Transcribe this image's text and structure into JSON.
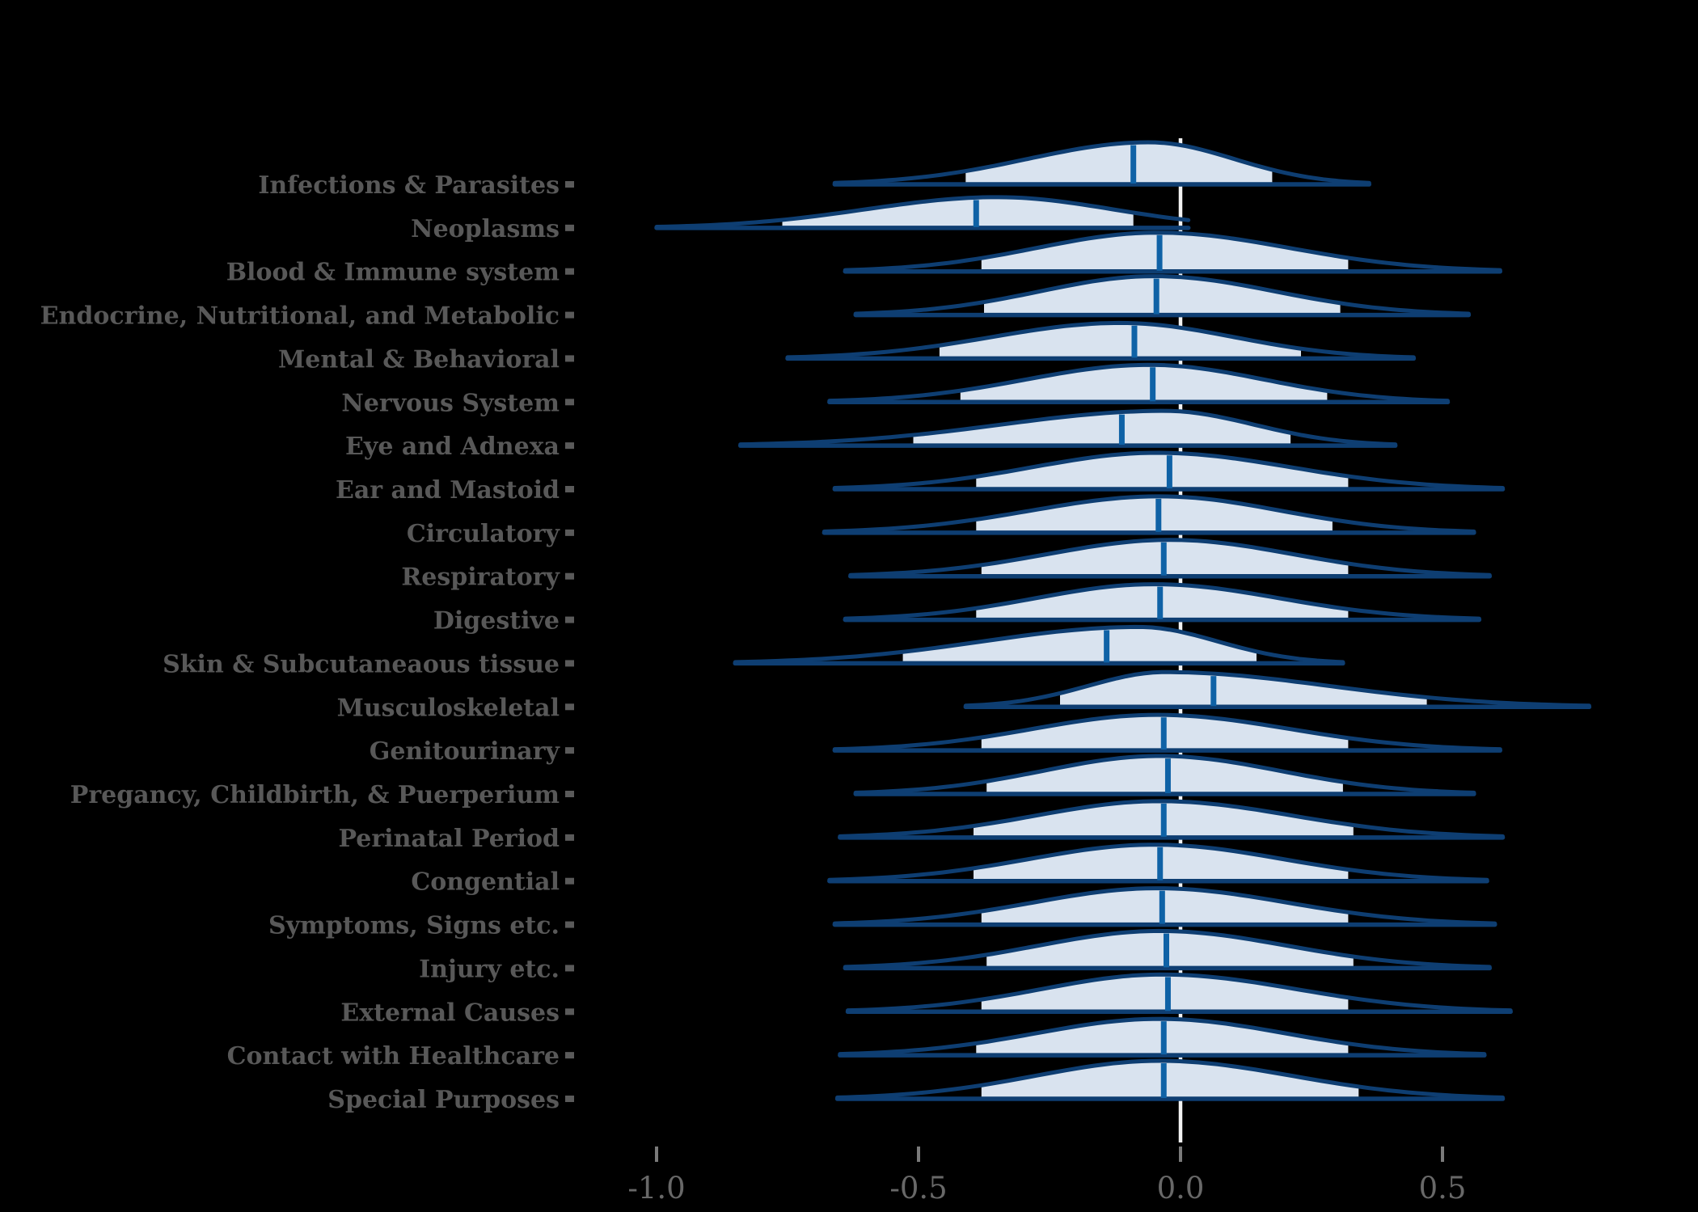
{
  "chart_data": {
    "type": "ridgeline",
    "title": "",
    "xlabel": "",
    "ylabel": "",
    "grid": false,
    "legend": null,
    "xlim": [
      -1.32,
      0.99
    ],
    "x_ticks": [
      -1.0,
      -0.5,
      0.0,
      0.5
    ],
    "x_tick_labels": [
      "-1.0",
      "-0.5",
      "0.0",
      "0.5"
    ],
    "reference_line_x": 0.0,
    "rows": [
      {
        "label": "Infections & Parasites",
        "xmin": -0.66,
        "xmax": 0.36,
        "fill_min": -0.41,
        "fill_max": 0.175,
        "median": -0.09,
        "mode": -0.06,
        "peak": 52,
        "cut_right": false
      },
      {
        "label": "Neoplasms",
        "xmin": -1.0,
        "xmax": 0.015,
        "fill_min": -0.76,
        "fill_max": -0.09,
        "median": -0.39,
        "mode": -0.35,
        "peak": 38,
        "cut_right": true
      },
      {
        "label": "Blood & Immune system",
        "xmin": -0.64,
        "xmax": 0.61,
        "fill_min": -0.38,
        "fill_max": 0.32,
        "median": -0.04,
        "mode": -0.045,
        "peak": 48,
        "cut_right": false
      },
      {
        "label": "Endocrine, Nutritional, and Metabolic",
        "xmin": -0.62,
        "xmax": 0.55,
        "fill_min": -0.375,
        "fill_max": 0.305,
        "median": -0.046,
        "mode": -0.05,
        "peak": 48,
        "cut_right": false
      },
      {
        "label": "Mental & Behavioral",
        "xmin": -0.75,
        "xmax": 0.445,
        "fill_min": -0.46,
        "fill_max": 0.23,
        "median": -0.088,
        "mode": -0.115,
        "peak": 44,
        "cut_right": false
      },
      {
        "label": "Nervous System",
        "xmin": -0.67,
        "xmax": 0.51,
        "fill_min": -0.42,
        "fill_max": 0.28,
        "median": -0.053,
        "mode": -0.06,
        "peak": 46,
        "cut_right": false
      },
      {
        "label": "Eye and Adnexa",
        "xmin": -0.84,
        "xmax": 0.41,
        "fill_min": -0.51,
        "fill_max": 0.21,
        "median": -0.112,
        "mode": -0.03,
        "peak": 43,
        "cut_right": false
      },
      {
        "label": "Ear and Mastoid",
        "xmin": -0.66,
        "xmax": 0.615,
        "fill_min": -0.39,
        "fill_max": 0.32,
        "median": -0.021,
        "mode": -0.045,
        "peak": 45,
        "cut_right": false
      },
      {
        "label": "Circulatory",
        "xmin": -0.68,
        "xmax": 0.56,
        "fill_min": -0.39,
        "fill_max": 0.29,
        "median": -0.042,
        "mode": -0.04,
        "peak": 45,
        "cut_right": false
      },
      {
        "label": "Respiratory",
        "xmin": -0.63,
        "xmax": 0.59,
        "fill_min": -0.38,
        "fill_max": 0.32,
        "median": -0.032,
        "mode": -0.02,
        "peak": 45,
        "cut_right": false
      },
      {
        "label": "Digestive",
        "xmin": -0.64,
        "xmax": 0.57,
        "fill_min": -0.39,
        "fill_max": 0.32,
        "median": -0.039,
        "mode": -0.05,
        "peak": 44,
        "cut_right": false
      },
      {
        "label": "Skin & Subcutaneaous tissue",
        "xmin": -0.85,
        "xmax": 0.31,
        "fill_min": -0.53,
        "fill_max": 0.145,
        "median": -0.141,
        "mode": -0.08,
        "peak": 45,
        "cut_right": false
      },
      {
        "label": "Musculoskeletal",
        "xmin": -0.41,
        "xmax": 0.78,
        "fill_min": -0.23,
        "fill_max": 0.47,
        "median": 0.063,
        "mode": -0.03,
        "peak": 43,
        "cut_right": false
      },
      {
        "label": "Genitourinary",
        "xmin": -0.66,
        "xmax": 0.61,
        "fill_min": -0.38,
        "fill_max": 0.32,
        "median": -0.032,
        "mode": -0.045,
        "peak": 44,
        "cut_right": false
      },
      {
        "label": "Pregancy, Childbirth, & Puerperium",
        "xmin": -0.62,
        "xmax": 0.56,
        "fill_min": -0.37,
        "fill_max": 0.31,
        "median": -0.024,
        "mode": -0.04,
        "peak": 47,
        "cut_right": false
      },
      {
        "label": "Perinatal Period",
        "xmin": -0.65,
        "xmax": 0.615,
        "fill_min": -0.395,
        "fill_max": 0.33,
        "median": -0.032,
        "mode": -0.04,
        "peak": 45,
        "cut_right": false
      },
      {
        "label": "Congential",
        "xmin": -0.67,
        "xmax": 0.585,
        "fill_min": -0.395,
        "fill_max": 0.32,
        "median": -0.039,
        "mode": -0.05,
        "peak": 45,
        "cut_right": false
      },
      {
        "label": "Symptoms, Signs etc.",
        "xmin": -0.66,
        "xmax": 0.6,
        "fill_min": -0.38,
        "fill_max": 0.32,
        "median": -0.035,
        "mode": -0.045,
        "peak": 45,
        "cut_right": false
      },
      {
        "label": "Injury etc.",
        "xmin": -0.64,
        "xmax": 0.59,
        "fill_min": -0.37,
        "fill_max": 0.33,
        "median": -0.027,
        "mode": -0.04,
        "peak": 46,
        "cut_right": false
      },
      {
        "label": "External Causes",
        "xmin": -0.635,
        "xmax": 0.63,
        "fill_min": -0.38,
        "fill_max": 0.32,
        "median": -0.024,
        "mode": -0.035,
        "peak": 46,
        "cut_right": false
      },
      {
        "label": "Contact with Healthcare",
        "xmin": -0.65,
        "xmax": 0.58,
        "fill_min": -0.39,
        "fill_max": 0.32,
        "median": -0.032,
        "mode": -0.04,
        "peak": 45,
        "cut_right": false
      },
      {
        "label": "Special Purposes",
        "xmin": -0.655,
        "xmax": 0.615,
        "fill_min": -0.38,
        "fill_max": 0.34,
        "median": -0.032,
        "mode": -0.04,
        "peak": 47,
        "cut_right": false
      }
    ]
  },
  "colors": {
    "background": "#000000",
    "violin_fill": "#d9e3ef",
    "violin_outline": "#0e3e72",
    "median_line": "#0f62a6",
    "reference_line": "#f2f2f2",
    "row_label": "#585858",
    "tick_square": "#5a5a5a",
    "axis_tick": "#7a7a7a",
    "axis_label": "#686868"
  }
}
